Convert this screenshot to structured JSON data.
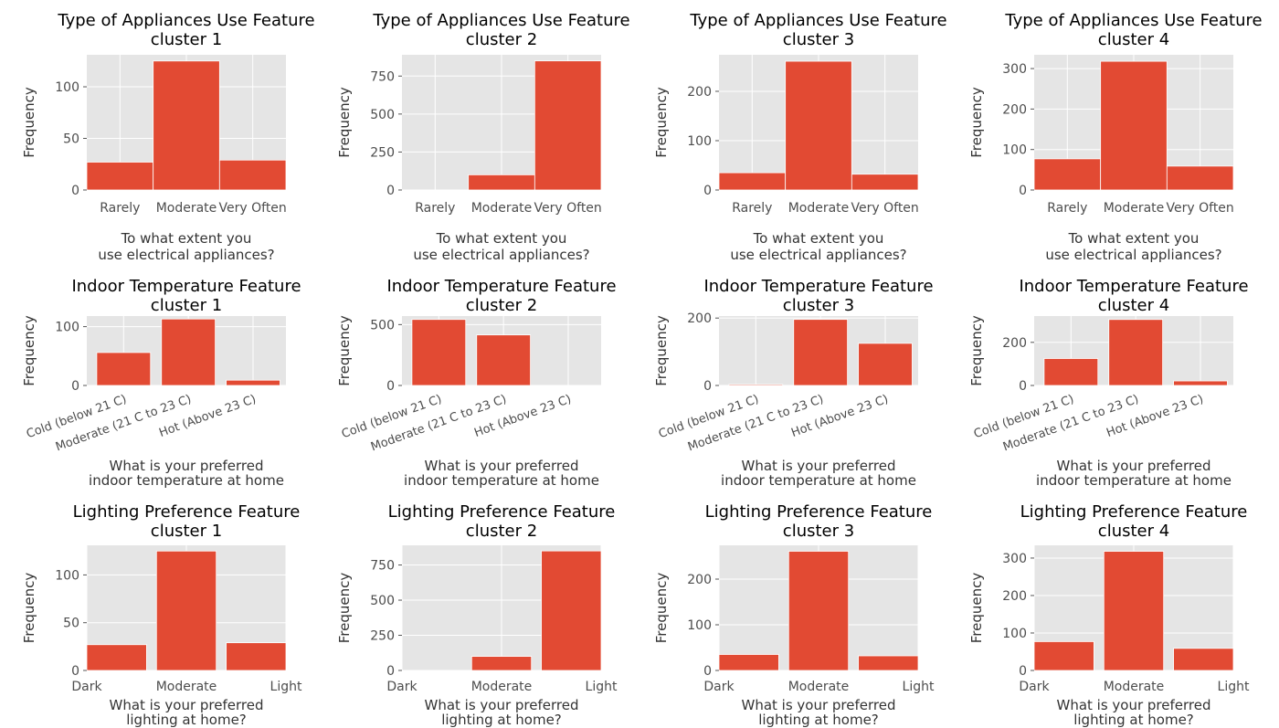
{
  "chart_data": [
    {
      "type": "bar",
      "title": [
        "Type of Appliances Use Feature",
        "cluster 1"
      ],
      "xlabel": [
        "To what extent you",
        "use electrical appliances?"
      ],
      "ylabel": "Frequency",
      "categories": [
        "Rarely",
        "Moderate",
        "Very Often"
      ],
      "values": [
        27,
        125,
        29
      ],
      "ylim": [
        0,
        131
      ],
      "yticks": [
        0,
        50,
        100
      ],
      "grid": true,
      "color": "#E24A33"
    },
    {
      "type": "bar",
      "title": [
        "Type of Appliances Use Feature",
        "cluster 2"
      ],
      "xlabel": [
        "To what extent you",
        "use electrical appliances?"
      ],
      "ylabel": "Frequency",
      "categories": [
        "Rarely",
        "Moderate",
        "Very Often"
      ],
      "values": [
        0,
        100,
        850
      ],
      "ylim": [
        0,
        890
      ],
      "yticks": [
        0,
        250,
        500,
        750
      ],
      "grid": true,
      "color": "#E24A33"
    },
    {
      "type": "bar",
      "title": [
        "Type of Appliances Use Feature",
        "cluster 3"
      ],
      "xlabel": [
        "To what extent you",
        "use electrical appliances?"
      ],
      "ylabel": "Frequency",
      "categories": [
        "Rarely",
        "Moderate",
        "Very Often"
      ],
      "values": [
        35,
        261,
        32
      ],
      "ylim": [
        0,
        274
      ],
      "yticks": [
        0,
        100,
        200
      ],
      "grid": true,
      "color": "#E24A33"
    },
    {
      "type": "bar",
      "title": [
        "Type of Appliances Use Feature",
        "cluster 4"
      ],
      "xlabel": [
        "To what extent you",
        "use electrical appliances?"
      ],
      "ylabel": "Frequency",
      "categories": [
        "Rarely",
        "Moderate",
        "Very Often"
      ],
      "values": [
        77,
        318,
        59
      ],
      "ylim": [
        0,
        334
      ],
      "yticks": [
        0,
        100,
        200,
        300
      ],
      "grid": true,
      "color": "#E24A33"
    },
    {
      "type": "bar",
      "title": [
        "Indoor Temperature Feature",
        "cluster 1"
      ],
      "xlabel": [
        "What is your preferred",
        "indoor temperature at home"
      ],
      "ylabel": "Frequency",
      "categories": [
        "Cold (below 21 C)",
        "Moderate (21 C to 23 C)",
        "Hot (Above 23 C)"
      ],
      "values": [
        56,
        113,
        9
      ],
      "ylim": [
        0,
        118
      ],
      "yticks": [
        0,
        100
      ],
      "grid": true,
      "color": "#E24A33"
    },
    {
      "type": "bar",
      "title": [
        "Indoor Temperature Feature",
        "cluster 2"
      ],
      "xlabel": [
        "What is your preferred",
        "indoor temperature at home"
      ],
      "ylabel": "Frequency",
      "categories": [
        "Cold (below 21 C)",
        "Moderate (21 C to 23 C)",
        "Hot (Above 23 C)"
      ],
      "values": [
        542,
        415,
        0
      ],
      "ylim": [
        0,
        570
      ],
      "yticks": [
        0,
        500
      ],
      "grid": true,
      "color": "#E24A33"
    },
    {
      "type": "bar",
      "title": [
        "Indoor Temperature Feature",
        "cluster 3"
      ],
      "xlabel": [
        "What is your preferred",
        "indoor temperature at home"
      ],
      "ylabel": "Frequency",
      "categories": [
        "Cold (below 21 C)",
        "Moderate (21 C to 23 C)",
        "Hot (Above 23 C)"
      ],
      "values": [
        3,
        196,
        125
      ],
      "ylim": [
        0,
        206
      ],
      "yticks": [
        0,
        200
      ],
      "grid": true,
      "color": "#E24A33"
    },
    {
      "type": "bar",
      "title": [
        "Indoor Temperature Feature",
        "cluster 4"
      ],
      "xlabel": [
        "What is your preferred",
        "indoor temperature at home"
      ],
      "ylabel": "Frequency",
      "categories": [
        "Cold (below 21 C)",
        "Moderate (21 C to 23 C)",
        "Hot (Above 23 C)"
      ],
      "values": [
        125,
        306,
        21
      ],
      "ylim": [
        0,
        322
      ],
      "yticks": [
        0,
        200
      ],
      "grid": true,
      "color": "#E24A33"
    },
    {
      "type": "bar",
      "title": [
        "Lighting Preference Feature",
        "cluster 1"
      ],
      "xlabel": [
        "What is your preferred",
        "lighting at home?"
      ],
      "ylabel": "Frequency",
      "categories": [
        "Dark",
        "Moderate",
        "Light"
      ],
      "values": [
        27,
        125,
        29
      ],
      "ylim": [
        0,
        131
      ],
      "yticks": [
        0,
        50,
        100
      ],
      "grid": true,
      "color": "#E24A33"
    },
    {
      "type": "bar",
      "title": [
        "Lighting Preference Feature",
        "cluster 2"
      ],
      "xlabel": [
        "What is your preferred",
        "lighting at home?"
      ],
      "ylabel": "Frequency",
      "categories": [
        "Dark",
        "Moderate",
        "Light"
      ],
      "values": [
        0,
        100,
        850
      ],
      "ylim": [
        0,
        890
      ],
      "yticks": [
        0,
        250,
        500,
        750
      ],
      "grid": true,
      "color": "#E24A33"
    },
    {
      "type": "bar",
      "title": [
        "Lighting Preference Feature",
        "cluster 3"
      ],
      "xlabel": [
        "What is your preferred",
        "lighting at home?"
      ],
      "ylabel": "Frequency",
      "categories": [
        "Dark",
        "Moderate",
        "Light"
      ],
      "values": [
        35,
        261,
        32
      ],
      "ylim": [
        0,
        274
      ],
      "yticks": [
        0,
        100,
        200
      ],
      "grid": true,
      "color": "#E24A33"
    },
    {
      "type": "bar",
      "title": [
        "Lighting Preference Feature",
        "cluster 4"
      ],
      "xlabel": [
        "What is your preferred",
        "lighting at home?"
      ],
      "ylabel": "Frequency",
      "categories": [
        "Dark",
        "Moderate",
        "Light"
      ],
      "values": [
        77,
        318,
        59
      ],
      "ylim": [
        0,
        334
      ],
      "yticks": [
        0,
        100,
        200,
        300
      ],
      "grid": true,
      "color": "#E24A33"
    }
  ]
}
